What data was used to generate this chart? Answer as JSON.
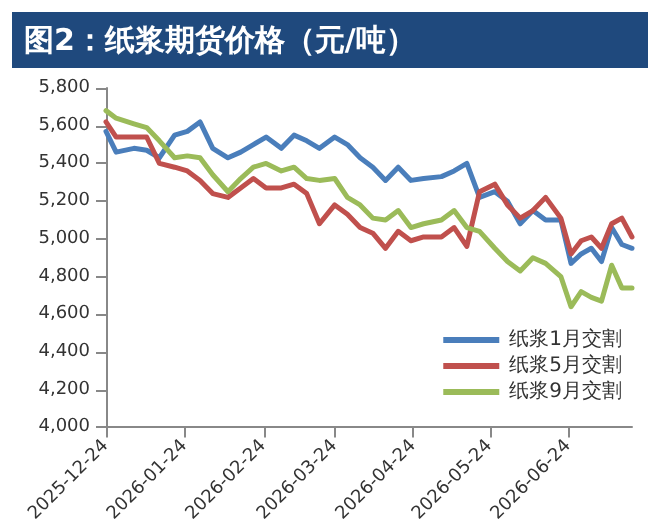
{
  "chart_data": {
    "type": "line",
    "title": "图2：纸浆期货价格（元/吨）",
    "x": [
      "2025-12-24",
      "2025-12-28",
      "2026-01-04",
      "2026-01-09",
      "2026-01-14",
      "2026-01-20",
      "2026-01-25",
      "2026-01-30",
      "2026-02-04",
      "2026-02-10",
      "2026-02-15",
      "2026-02-20",
      "2026-02-25",
      "2026-03-03",
      "2026-03-08",
      "2026-03-13",
      "2026-03-18",
      "2026-03-24",
      "2026-03-29",
      "2026-04-03",
      "2026-04-08",
      "2026-04-13",
      "2026-04-18",
      "2026-04-23",
      "2026-04-28",
      "2026-05-05",
      "2026-05-10",
      "2026-05-15",
      "2026-05-20",
      "2026-05-26",
      "2026-05-31",
      "2026-06-05",
      "2026-06-10",
      "2026-06-15",
      "2026-06-21",
      "2026-06-25",
      "2026-06-29",
      "2026-07-03",
      "2026-07-07",
      "2026-07-11",
      "2026-07-15",
      "2026-07-19"
    ],
    "series": [
      {
        "name": "纸浆1月交割",
        "color": "#4a7ebb",
        "values": [
          5570,
          5460,
          5480,
          5470,
          5430,
          5550,
          5570,
          5620,
          5480,
          5430,
          5460,
          5500,
          5540,
          5480,
          5550,
          5520,
          5480,
          5540,
          5500,
          5430,
          5380,
          5310,
          5380,
          5310,
          5320,
          5330,
          5360,
          5400,
          5220,
          5250,
          5200,
          5080,
          5150,
          5100,
          5100,
          4870,
          4920,
          4950,
          4880,
          5060,
          4970,
          4950
        ]
      },
      {
        "name": "纸浆5月交割",
        "color": "#c0504d",
        "values": [
          5620,
          5540,
          5540,
          5540,
          5400,
          5380,
          5360,
          5310,
          5240,
          5220,
          5270,
          5320,
          5270,
          5270,
          5290,
          5240,
          5080,
          5180,
          5130,
          5060,
          5030,
          4950,
          5040,
          4990,
          5010,
          5010,
          5060,
          4960,
          5250,
          5290,
          5180,
          5110,
          5150,
          5220,
          5110,
          4920,
          4990,
          5010,
          4950,
          5080,
          5110,
          5010
        ]
      },
      {
        "name": "纸浆9月交割",
        "color": "#9bbb59",
        "values": [
          5680,
          5640,
          5610,
          5590,
          5520,
          5430,
          5440,
          5430,
          5340,
          5250,
          5320,
          5380,
          5400,
          5360,
          5380,
          5320,
          5310,
          5320,
          5220,
          5180,
          5110,
          5100,
          5150,
          5060,
          5080,
          5100,
          5150,
          5060,
          5040,
          4950,
          4880,
          4830,
          4900,
          4870,
          4800,
          4640,
          4720,
          4690,
          4670,
          4860,
          4740,
          4740
        ]
      }
    ],
    "xlim": [
      "2025-12-24",
      "2026-07-19"
    ],
    "xticks": [
      "2025-12-24",
      "2026-01-24",
      "2026-02-24",
      "2026-03-24",
      "2026-04-24",
      "2026-05-24",
      "2026-06-24"
    ],
    "ylim": [
      4000,
      5800
    ],
    "yticks": [
      {
        "value": 4000,
        "label": "4,000"
      },
      {
        "value": 4200,
        "label": "4,200"
      },
      {
        "value": 4400,
        "label": "4,400"
      },
      {
        "value": 4600,
        "label": "4,600"
      },
      {
        "value": 4800,
        "label": "4,800"
      },
      {
        "value": 5000,
        "label": "5,000"
      },
      {
        "value": 5200,
        "label": "5,200"
      },
      {
        "value": 5400,
        "label": "5,400"
      },
      {
        "value": 5600,
        "label": "5,600"
      },
      {
        "value": 5800,
        "label": "5,800"
      }
    ],
    "grid": false,
    "legend": "bottom right",
    "marker": "none",
    "line_style": "solid"
  }
}
